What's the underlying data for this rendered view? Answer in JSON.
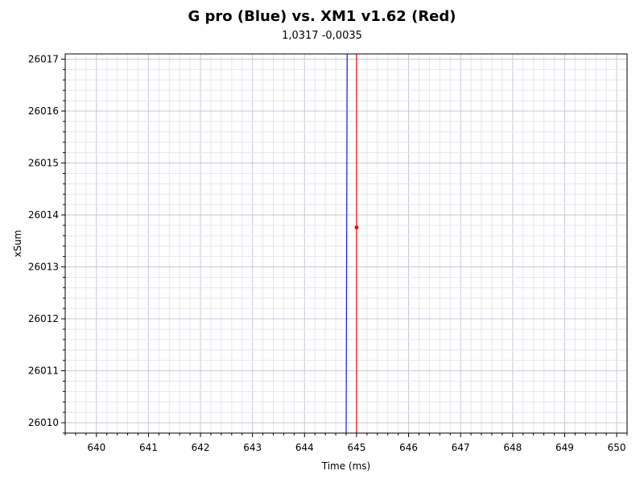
{
  "chart_data": {
    "type": "line",
    "title": "G pro (Blue) vs. XM1 v1.62 (Red)",
    "subtitle": "1,0317 -0,0035",
    "xlabel": "Time (ms)",
    "ylabel": "xSum",
    "xlim": [
      639.4,
      650.2
    ],
    "ylim": [
      26009.8,
      26017.1
    ],
    "x_ticks": [
      640,
      641,
      642,
      643,
      644,
      645,
      646,
      647,
      648,
      649,
      650
    ],
    "y_ticks": [
      26010,
      26011,
      26012,
      26013,
      26014,
      26015,
      26016,
      26017
    ],
    "grid": true,
    "series": [
      {
        "name": "G pro",
        "color": "#1a1aff",
        "x": [
          644.8,
          644.82
        ],
        "y": [
          26009.8,
          26017.1
        ]
      },
      {
        "name": "XM1 v1.62",
        "color": "#ff0000",
        "x": [
          645.0,
          645.0
        ],
        "y": [
          26009.8,
          26017.1
        ],
        "marker": {
          "x": 645.0,
          "y": 26013.76
        }
      }
    ]
  }
}
